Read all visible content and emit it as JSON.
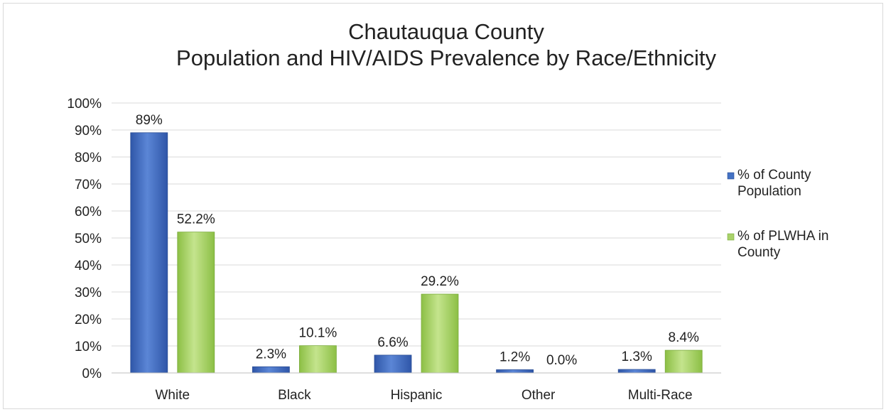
{
  "chart_data": {
    "type": "bar",
    "title": [
      "Chautauqua County",
      "Population and HIV/AIDS Prevalence by Race/Ethnicity"
    ],
    "categories": [
      "White",
      "Black",
      "Hispanic",
      "Other",
      "Multi-Race"
    ],
    "series": [
      {
        "name": "% of County Population",
        "legend_lines": [
          "% of County",
          "Population"
        ],
        "color": "#4472c4",
        "values": [
          89,
          2.3,
          6.6,
          1.2,
          1.3
        ],
        "labels": [
          "89%",
          "2.3%",
          "6.6%",
          "1.2%",
          "1.3%"
        ]
      },
      {
        "name": "% of PLWHA in County",
        "legend_lines": [
          "% of PLWHA in",
          "County"
        ],
        "color": "#a9d26a",
        "values": [
          52.2,
          10.1,
          29.2,
          0.0,
          8.4
        ],
        "labels": [
          "52.2%",
          "10.1%",
          "29.2%",
          "0.0%",
          "8.4%"
        ]
      }
    ],
    "y_ticks": [
      "0%",
      "10%",
      "20%",
      "30%",
      "40%",
      "50%",
      "60%",
      "70%",
      "80%",
      "90%",
      "100%"
    ],
    "ylim": [
      0,
      100
    ],
    "grid": true,
    "legend_position": "right"
  }
}
